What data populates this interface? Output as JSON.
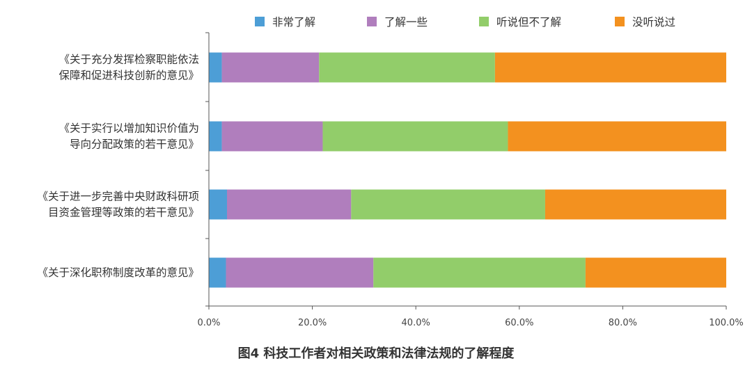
{
  "chart_data": {
    "type": "bar",
    "orientation": "horizontal",
    "stacked": true,
    "title": "图4 科技工作者对相关政策和法律法规的了解程度",
    "categories": [
      [
        "《关于充分发挥检察职能依法",
        "保障和促进科技创新的意见》"
      ],
      [
        "《关于实行以增加知识价值为",
        "导向分配政策的若干意见》"
      ],
      [
        "《关于进一步完善中央财政科研项",
        "目资金管理等政策的若干意见》"
      ],
      [
        "《关于深化职称制度改革的意见》"
      ]
    ],
    "series": [
      {
        "name": "非常了解",
        "color": "#4d9ed6",
        "values": [
          2.5,
          2.5,
          3.5,
          3.3
        ]
      },
      {
        "name": "了解一些",
        "color": "#b07ebd",
        "values": [
          18.8,
          19.5,
          24.0,
          28.5
        ]
      },
      {
        "name": "听说但不了解",
        "color": "#92cd6a",
        "values": [
          34.0,
          35.8,
          37.5,
          41.0
        ]
      },
      {
        "name": "没听说过",
        "color": "#f3911f",
        "values": [
          44.7,
          42.2,
          35.0,
          27.2
        ]
      }
    ],
    "xlim": [
      0,
      100
    ],
    "xticks": [
      "0.0%",
      "20.0%",
      "40.0%",
      "60.0%",
      "80.0%",
      "100.0%"
    ],
    "legend_position": "top",
    "grid": false
  }
}
